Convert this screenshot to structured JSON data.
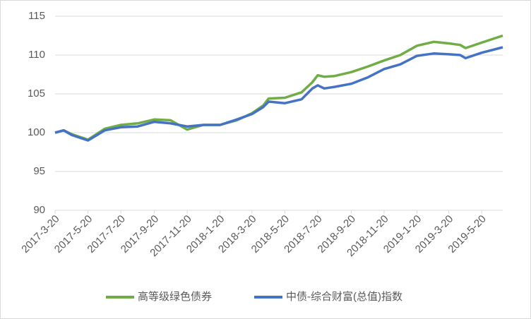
{
  "chart_data": {
    "type": "line",
    "x": [
      "2017-3-20",
      "2017-4-5",
      "2017-4-20",
      "2017-5-20",
      "2017-6-20",
      "2017-7-20",
      "2017-8-20",
      "2017-9-20",
      "2017-10-20",
      "2017-11-20",
      "2017-12-20",
      "2018-1-20",
      "2018-2-20",
      "2018-3-20",
      "2018-4-10",
      "2018-4-20",
      "2018-5-20",
      "2018-6-20",
      "2018-7-10",
      "2018-7-20",
      "2018-8-1",
      "2018-8-20",
      "2018-9-20",
      "2018-10-20",
      "2018-11-20",
      "2018-12-20",
      "2019-1-20",
      "2019-2-20",
      "2019-3-20",
      "2019-4-10",
      "2019-4-20",
      "2019-5-20",
      "2019-6-28"
    ],
    "series": [
      {
        "name": "高等级绿色债券",
        "color": "#70ad47",
        "values": [
          100,
          100.3,
          99.8,
          99.1,
          100.5,
          101.0,
          101.2,
          101.7,
          101.6,
          100.4,
          101.0,
          101.0,
          101.6,
          102.5,
          103.5,
          104.4,
          104.5,
          105.2,
          106.5,
          107.4,
          107.2,
          107.3,
          107.8,
          108.5,
          109.3,
          110.0,
          111.2,
          111.7,
          111.5,
          111.3,
          110.9,
          111.6,
          112.5
        ]
      },
      {
        "name": "中债-综合财富(总值)指数",
        "color": "#4472c4",
        "values": [
          100,
          100.3,
          99.7,
          99.0,
          100.3,
          100.7,
          100.8,
          101.4,
          101.2,
          100.8,
          101.0,
          101.0,
          101.7,
          102.4,
          103.3,
          104.0,
          103.8,
          104.3,
          105.7,
          106.1,
          105.7,
          105.9,
          106.3,
          107.1,
          108.2,
          108.8,
          109.9,
          110.2,
          110.1,
          110.0,
          109.6,
          110.3,
          111.0
        ]
      }
    ],
    "xlim": [
      "2017-3-20",
      "2019-6-28"
    ],
    "xticks": [
      "2017-3-20",
      "2017-5-20",
      "2017-7-20",
      "2017-9-20",
      "2017-11-20",
      "2018-1-20",
      "2018-3-20",
      "2018-5-20",
      "2018-7-20",
      "2018-9-20",
      "2018-11-20",
      "2019-1-20",
      "2019-3-20",
      "2019-5-20"
    ],
    "ylim": [
      90,
      115
    ],
    "yticks": [
      90,
      95,
      100,
      105,
      110,
      115
    ],
    "grid": true,
    "legend": "bottom"
  }
}
